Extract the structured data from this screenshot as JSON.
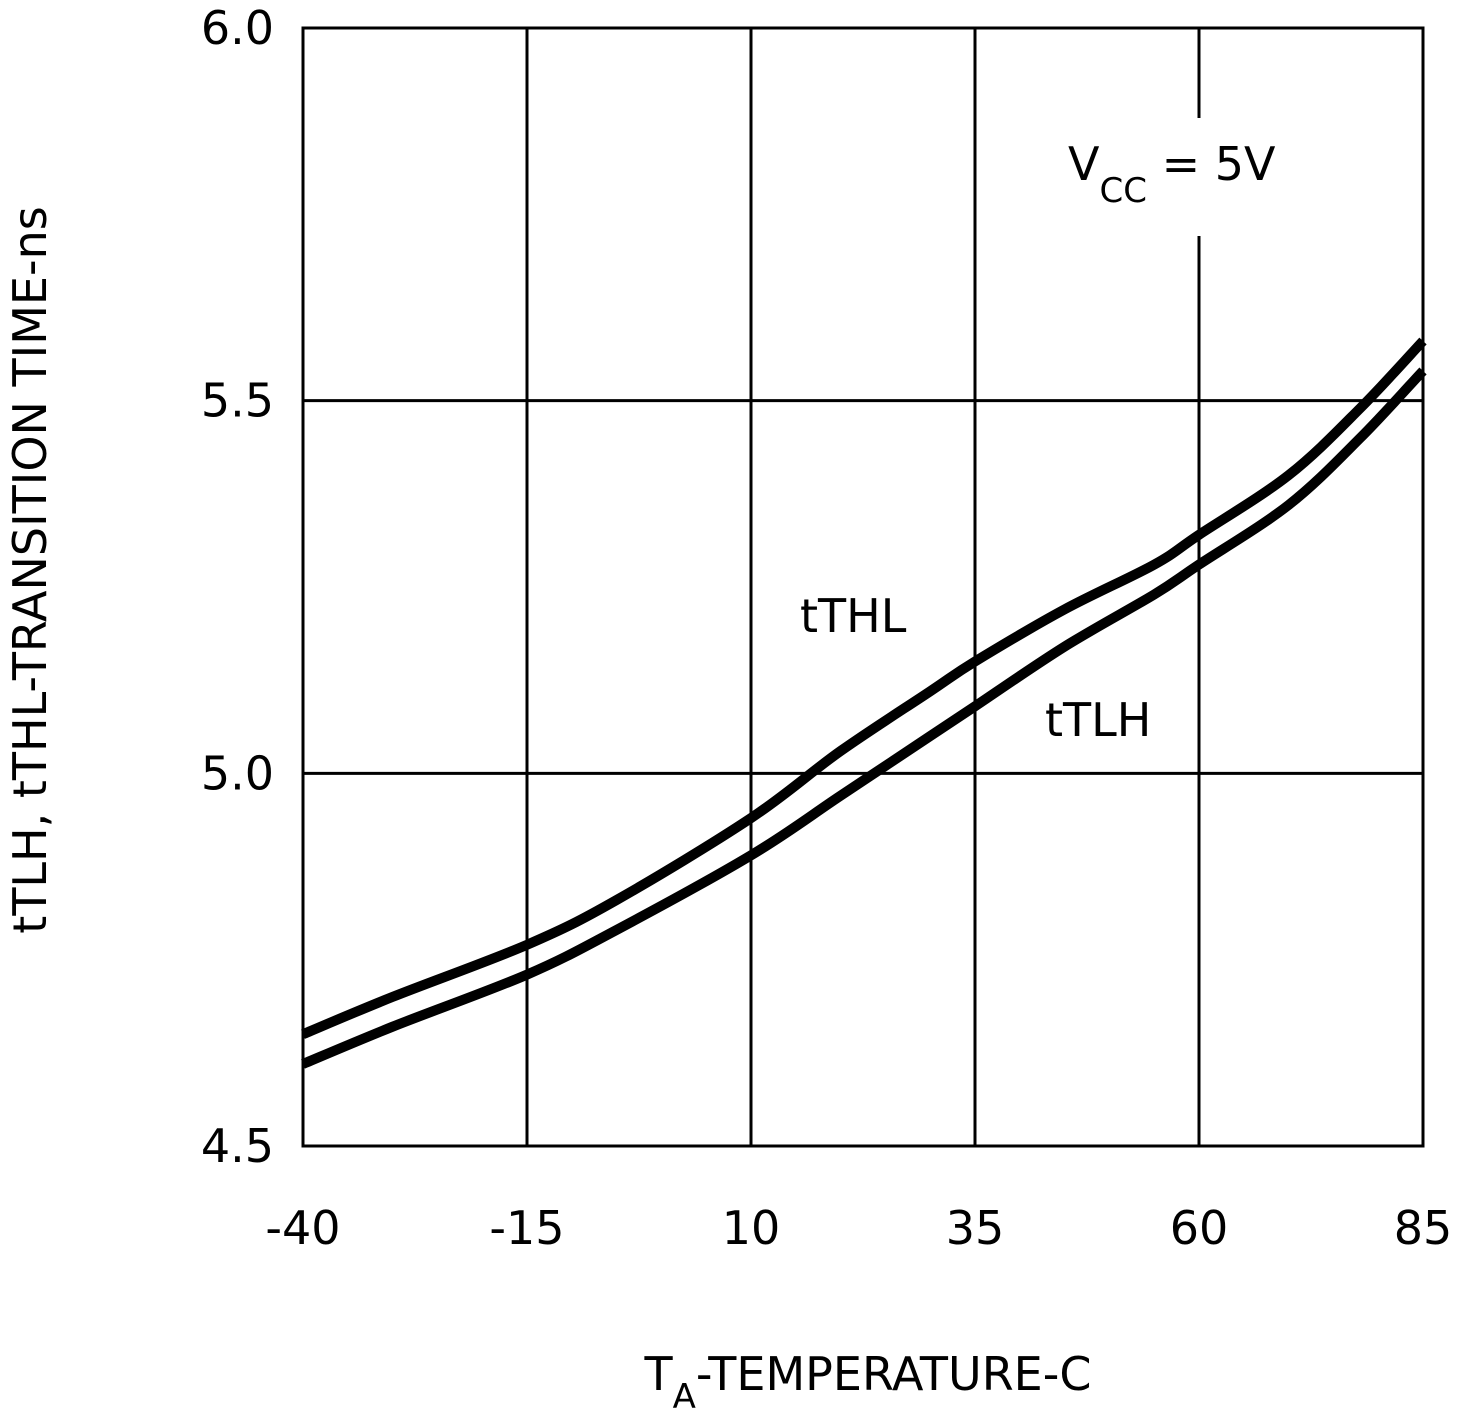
{
  "chart_data": {
    "type": "line",
    "title": "",
    "xlabel_main": "T",
    "xlabel_sub": "A",
    "xlabel_rest": "-TEMPERATURE-C",
    "ylabel": "tTLH, tTHL-TRANSITION TIME-ns",
    "xlim": [
      -40,
      85
    ],
    "ylim": [
      4.5,
      6.0
    ],
    "x_ticks": [
      -40,
      -15,
      10,
      35,
      60,
      85
    ],
    "x_tick_labels": [
      "-40",
      "-15",
      "10",
      "35",
      "60",
      "85"
    ],
    "y_ticks": [
      4.5,
      5.0,
      5.5,
      6.0
    ],
    "y_tick_labels": [
      "4.5",
      "5.0",
      "5.5",
      "6.0"
    ],
    "grid": true,
    "annotation": {
      "main": "V",
      "sub": "CC",
      "rest": " = 5V"
    },
    "series": [
      {
        "name": "tTHL",
        "label": "tTHL",
        "x": [
          -40,
          -30,
          -15,
          -5,
          10,
          20,
          30,
          35,
          45,
          55,
          60,
          70,
          78,
          85
        ],
        "y": [
          4.65,
          4.7,
          4.77,
          4.83,
          4.94,
          5.03,
          5.11,
          5.15,
          5.22,
          5.28,
          5.32,
          5.4,
          5.49,
          5.58
        ]
      },
      {
        "name": "tTLH",
        "label": "tTLH",
        "x": [
          -40,
          -30,
          -15,
          -5,
          10,
          20,
          30,
          35,
          45,
          55,
          60,
          70,
          78,
          85
        ],
        "y": [
          4.61,
          4.66,
          4.73,
          4.79,
          4.89,
          4.97,
          5.05,
          5.09,
          5.17,
          5.24,
          5.28,
          5.36,
          5.45,
          5.54
        ]
      }
    ]
  }
}
